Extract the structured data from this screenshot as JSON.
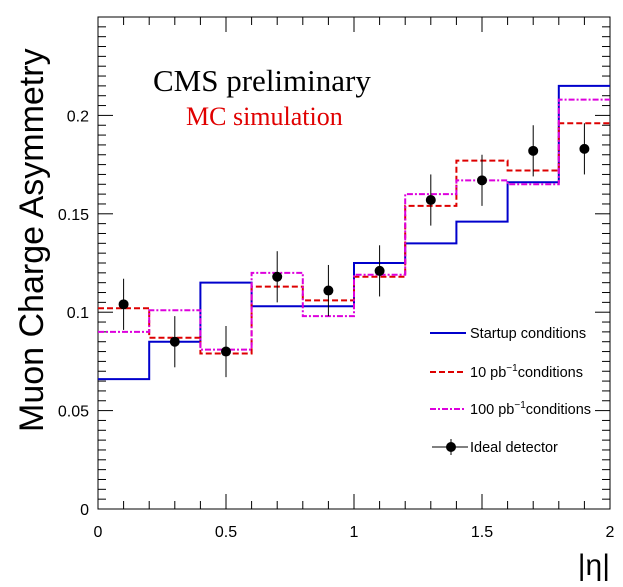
{
  "chart_data": {
    "type": "line",
    "title": "CMS preliminary",
    "subtitle": "MC simulation",
    "xlabel": "|η|",
    "ylabel": "Muon Charge Asymmetry",
    "xlim": [
      0,
      2
    ],
    "ylim": [
      0,
      0.25
    ],
    "xticks": [
      "0",
      "0.5",
      "1",
      "1.5",
      "2"
    ],
    "yticks": [
      "0",
      "0.05",
      "0.1",
      "0.15",
      "0.2"
    ],
    "bin_edges": [
      0,
      0.2,
      0.4,
      0.6,
      0.8,
      1.0,
      1.2,
      1.4,
      1.6,
      1.8,
      2.0
    ],
    "series": [
      {
        "name": "Startup conditions",
        "style": "solid-step",
        "color": "#0000cc",
        "values": [
          0.066,
          0.085,
          0.115,
          0.103,
          0.103,
          0.125,
          0.135,
          0.146,
          0.166,
          0.215
        ]
      },
      {
        "name": "10 pb",
        "name_sup": "−1",
        "name_tail": "conditions",
        "style": "dashed-step",
        "color": "#dd0000",
        "values": [
          0.102,
          0.087,
          0.079,
          0.113,
          0.106,
          0.118,
          0.154,
          0.177,
          0.172,
          0.196
        ]
      },
      {
        "name": "100 pb",
        "name_sup": "−1",
        "name_tail": "conditions",
        "style": "dashdot-step",
        "color": "#dd00dd",
        "values": [
          0.09,
          0.101,
          0.081,
          0.12,
          0.098,
          0.119,
          0.16,
          0.167,
          0.165,
          0.208
        ]
      },
      {
        "name": "Ideal detector",
        "style": "points-errorbars",
        "color": "#000000",
        "x": [
          0.1,
          0.3,
          0.5,
          0.7,
          0.9,
          1.1,
          1.3,
          1.5,
          1.7,
          1.9
        ],
        "values": [
          0.104,
          0.085,
          0.08,
          0.118,
          0.111,
          0.121,
          0.157,
          0.167,
          0.182,
          0.183
        ],
        "errors": [
          0.013,
          0.013,
          0.013,
          0.013,
          0.013,
          0.013,
          0.013,
          0.013,
          0.013,
          0.013
        ]
      }
    ],
    "legend_position": "right",
    "grid": false
  }
}
